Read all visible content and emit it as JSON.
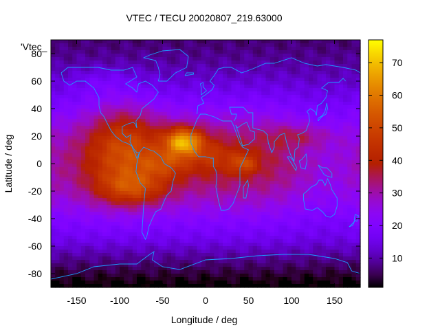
{
  "chart_data": {
    "type": "heatmap",
    "title": "VTEC / TECU 20020807_219.63000",
    "xlabel": "Longitude / deg",
    "ylabel": "Latitude / deg",
    "legend_label": "'Vtec_",
    "xlim": [
      -180,
      180
    ],
    "ylim": [
      -90,
      90
    ],
    "xticks": [
      -150,
      -100,
      -50,
      0,
      50,
      100,
      150
    ],
    "yticks": [
      -80,
      -60,
      -40,
      -20,
      0,
      20,
      40,
      60,
      80
    ],
    "colorbar": {
      "min": 1,
      "max": 77,
      "ticks": [
        10,
        20,
        30,
        40,
        50,
        60,
        70
      ]
    },
    "grid_resolution_deg": [
      5,
      2.5
    ],
    "anomalies": [
      {
        "name": "equatorial-peak",
        "lon": -25,
        "lat": 16,
        "value": 76
      },
      {
        "name": "southern-crest",
        "lon": -85,
        "lat": -18,
        "value": 52
      },
      {
        "name": "east-atlantic-tongue",
        "lon": 45,
        "lat": 0,
        "value": 50
      },
      {
        "name": "americas-background",
        "lon": -95,
        "lat": 10,
        "value": 44
      }
    ]
  },
  "colors": {
    "coastline": "#1e9bff",
    "palette": "gnuplot-pm3d-default"
  }
}
